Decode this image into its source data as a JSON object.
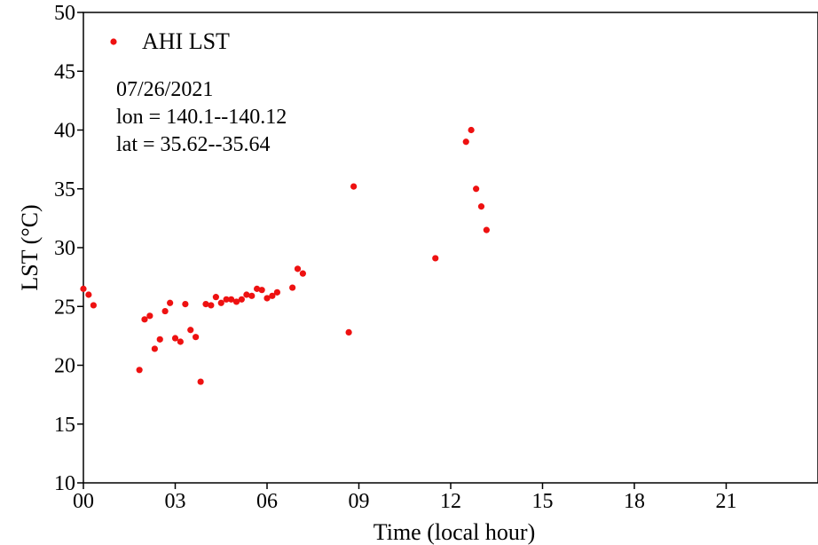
{
  "chart_data": {
    "type": "scatter",
    "title": "",
    "xlabel": "Time (local hour)",
    "ylabel": "LST (°C)",
    "xlim": [
      0,
      24
    ],
    "ylim": [
      10,
      50
    ],
    "x_ticks": [
      0,
      3,
      6,
      9,
      12,
      15,
      18,
      21
    ],
    "x_tick_labels": [
      "00",
      "03",
      "06",
      "09",
      "12",
      "15",
      "18",
      "21"
    ],
    "y_ticks": [
      10,
      15,
      20,
      25,
      30,
      35,
      40,
      45,
      50
    ],
    "y_tick_labels": [
      "10",
      "15",
      "20",
      "25",
      "30",
      "35",
      "40",
      "45",
      "50"
    ],
    "grid": false,
    "legend_position": "top-left",
    "marker_color": "#ee1111",
    "series": [
      {
        "name": "AHI LST",
        "points": [
          [
            0.0,
            26.5
          ],
          [
            0.17,
            26.0
          ],
          [
            0.33,
            25.1
          ],
          [
            1.83,
            19.6
          ],
          [
            2.0,
            23.9
          ],
          [
            2.17,
            24.2
          ],
          [
            2.33,
            21.4
          ],
          [
            2.5,
            22.2
          ],
          [
            2.67,
            24.6
          ],
          [
            2.83,
            25.3
          ],
          [
            3.0,
            22.3
          ],
          [
            3.17,
            22.0
          ],
          [
            3.33,
            25.2
          ],
          [
            3.5,
            23.0
          ],
          [
            3.67,
            22.4
          ],
          [
            3.83,
            18.6
          ],
          [
            4.0,
            25.2
          ],
          [
            4.17,
            25.1
          ],
          [
            4.33,
            25.8
          ],
          [
            4.5,
            25.3
          ],
          [
            4.67,
            25.6
          ],
          [
            4.83,
            25.6
          ],
          [
            5.0,
            25.4
          ],
          [
            5.17,
            25.6
          ],
          [
            5.33,
            26.0
          ],
          [
            5.5,
            25.9
          ],
          [
            5.67,
            26.5
          ],
          [
            5.83,
            26.4
          ],
          [
            6.0,
            25.7
          ],
          [
            6.17,
            25.9
          ],
          [
            6.33,
            26.2
          ],
          [
            6.83,
            26.6
          ],
          [
            7.0,
            28.2
          ],
          [
            7.17,
            27.8
          ],
          [
            8.67,
            22.8
          ],
          [
            8.83,
            35.2
          ],
          [
            11.5,
            29.1
          ],
          [
            12.5,
            39.0
          ],
          [
            12.67,
            40.0
          ],
          [
            12.83,
            35.0
          ],
          [
            13.0,
            33.5
          ],
          [
            13.17,
            31.5
          ]
        ]
      }
    ],
    "annotations": [
      "07/26/2021",
      "lon = 140.1--140.12",
      "lat = 35.62--35.64"
    ]
  }
}
